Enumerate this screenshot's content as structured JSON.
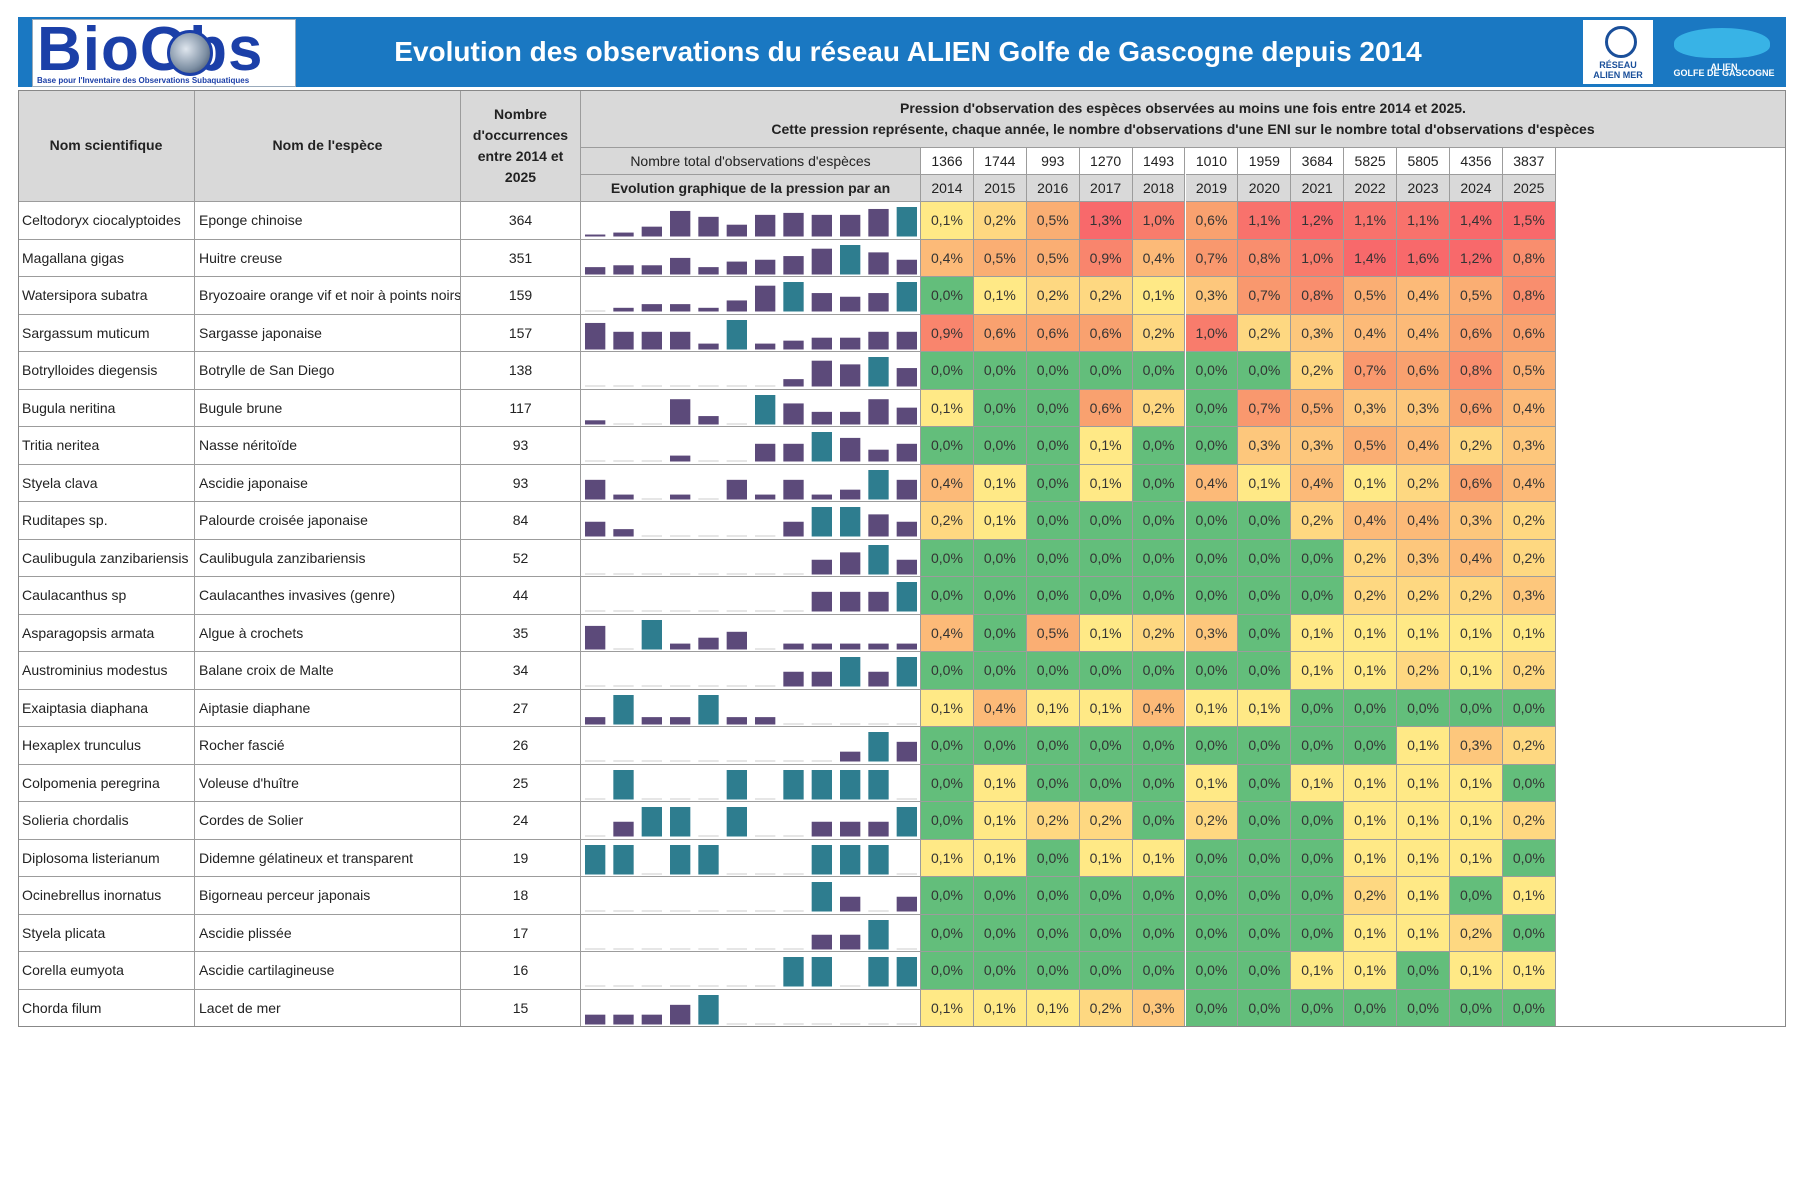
{
  "header": {
    "title": "Evolution des observations du réseau ALIEN Golfe de Gascogne depuis 2014",
    "logo_left_text": "BioObs",
    "logo_left_subtitle": "Base pour l'Inventaire des Observations Subaquatiques",
    "logo_center_text": "RÉSEAU ALIEN MER",
    "logo_right_text": "ALIEN",
    "logo_right_subtitle": "GOLFE DE GASCOGNE"
  },
  "colors": {
    "header_bg": "#1a78c2",
    "bar_purple": "#5c4a7a",
    "bar_teal": "#2e7d8f",
    "scale": [
      "#63be7b",
      "#a9cf7d",
      "#ffe986",
      "#fdc77c",
      "#f9a16f",
      "#f8696b"
    ]
  },
  "chart_data": {
    "type": "table",
    "title": "Evolution des observations du réseau ALIEN Golfe de Gascogne depuis 2014",
    "columns": {
      "scientific_name": "Nom scientifique",
      "species_name": "Nom de l'espèce",
      "occurrences": "Nombre d'occurrences entre 2014 et 2025",
      "pressure_title_line1": "Pression d'observation des espèces observées au moins une fois entre 2014 et 2025.",
      "pressure_title_line2": "Cette pression représente, chaque année, le nombre d'observations d'une ENI sur le nombre total d'observations d'espèces",
      "totals_label": "Nombre total d'observations d'espèces",
      "evolution_label": "Evolution graphique de la pression par an"
    },
    "years": [
      "2014",
      "2015",
      "2016",
      "2017",
      "2018",
      "2019",
      "2020",
      "2021",
      "2022",
      "2023",
      "2024",
      "2025"
    ],
    "totals": [
      "1366",
      "1744",
      "993",
      "1270",
      "1493",
      "1010",
      "1959",
      "3684",
      "5825",
      "5805",
      "4356",
      "3837"
    ],
    "rows": [
      {
        "sci": "Celtodoryx ciocalyptoides",
        "name": "Eponge chinoise",
        "n": "364",
        "p": [
          "0,1%",
          "0,2%",
          "0,5%",
          "1,3%",
          "1,0%",
          "0,6%",
          "1,1%",
          "1,2%",
          "1,1%",
          "1,1%",
          "1,4%",
          "1,5%"
        ],
        "v": [
          0.1,
          0.2,
          0.5,
          1.3,
          1.0,
          0.6,
          1.1,
          1.2,
          1.1,
          1.1,
          1.4,
          1.5
        ]
      },
      {
        "sci": "Magallana gigas",
        "name": "Huitre creuse",
        "n": "351",
        "p": [
          "0,4%",
          "0,5%",
          "0,5%",
          "0,9%",
          "0,4%",
          "0,7%",
          "0,8%",
          "1,0%",
          "1,4%",
          "1,6%",
          "1,2%",
          "0,8%"
        ],
        "v": [
          0.4,
          0.5,
          0.5,
          0.9,
          0.4,
          0.7,
          0.8,
          1.0,
          1.4,
          1.6,
          1.2,
          0.8
        ]
      },
      {
        "sci": "Watersipora subatra",
        "name": "Bryozoaire orange vif et noir à points noirs",
        "n": "159",
        "p": [
          "0,0%",
          "0,1%",
          "0,2%",
          "0,2%",
          "0,1%",
          "0,3%",
          "0,7%",
          "0,8%",
          "0,5%",
          "0,4%",
          "0,5%",
          "0,8%"
        ],
        "v": [
          0.0,
          0.1,
          0.2,
          0.2,
          0.1,
          0.3,
          0.7,
          0.8,
          0.5,
          0.4,
          0.5,
          0.8
        ]
      },
      {
        "sci": "Sargassum muticum",
        "name": "Sargasse japonaise",
        "n": "157",
        "p": [
          "0,9%",
          "0,6%",
          "0,6%",
          "0,6%",
          "0,2%",
          "1,0%",
          "0,2%",
          "0,3%",
          "0,4%",
          "0,4%",
          "0,6%",
          "0,6%"
        ],
        "v": [
          0.9,
          0.6,
          0.6,
          0.6,
          0.2,
          1.0,
          0.2,
          0.3,
          0.4,
          0.4,
          0.6,
          0.6
        ]
      },
      {
        "sci": "Botrylloides diegensis",
        "name": "Botrylle de San Diego",
        "n": "138",
        "p": [
          "0,0%",
          "0,0%",
          "0,0%",
          "0,0%",
          "0,0%",
          "0,0%",
          "0,0%",
          "0,2%",
          "0,7%",
          "0,6%",
          "0,8%",
          "0,5%"
        ],
        "v": [
          0.0,
          0.0,
          0.0,
          0.0,
          0.0,
          0.0,
          0.0,
          0.2,
          0.7,
          0.6,
          0.8,
          0.5
        ]
      },
      {
        "sci": "Bugula neritina",
        "name": "Bugule brune",
        "n": "117",
        "p": [
          "0,1%",
          "0,0%",
          "0,0%",
          "0,6%",
          "0,2%",
          "0,0%",
          "0,7%",
          "0,5%",
          "0,3%",
          "0,3%",
          "0,6%",
          "0,4%"
        ],
        "v": [
          0.1,
          0.0,
          0.0,
          0.6,
          0.2,
          0.0,
          0.7,
          0.5,
          0.3,
          0.3,
          0.6,
          0.4
        ]
      },
      {
        "sci": "Tritia neritea",
        "name": "Nasse néritoïde",
        "n": "93",
        "p": [
          "0,0%",
          "0,0%",
          "0,0%",
          "0,1%",
          "0,0%",
          "0,0%",
          "0,3%",
          "0,3%",
          "0,5%",
          "0,4%",
          "0,2%",
          "0,3%"
        ],
        "v": [
          0.0,
          0.0,
          0.0,
          0.1,
          0.0,
          0.0,
          0.3,
          0.3,
          0.5,
          0.4,
          0.2,
          0.3
        ]
      },
      {
        "sci": "Styela clava",
        "name": "Ascidie japonaise",
        "n": "93",
        "p": [
          "0,4%",
          "0,1%",
          "0,0%",
          "0,1%",
          "0,0%",
          "0,4%",
          "0,1%",
          "0,4%",
          "0,1%",
          "0,2%",
          "0,6%",
          "0,4%"
        ],
        "v": [
          0.4,
          0.1,
          0.0,
          0.1,
          0.0,
          0.4,
          0.1,
          0.4,
          0.1,
          0.2,
          0.6,
          0.4
        ]
      },
      {
        "sci": "Ruditapes sp.",
        "name": "Palourde croisée japonaise",
        "n": "84",
        "p": [
          "0,2%",
          "0,1%",
          "0,0%",
          "0,0%",
          "0,0%",
          "0,0%",
          "0,0%",
          "0,2%",
          "0,4%",
          "0,4%",
          "0,3%",
          "0,2%"
        ],
        "v": [
          0.2,
          0.1,
          0.0,
          0.0,
          0.0,
          0.0,
          0.0,
          0.2,
          0.4,
          0.4,
          0.3,
          0.2
        ]
      },
      {
        "sci": "Caulibugula zanzibariensis",
        "name": "Caulibugula zanzibariensis",
        "n": "52",
        "p": [
          "0,0%",
          "0,0%",
          "0,0%",
          "0,0%",
          "0,0%",
          "0,0%",
          "0,0%",
          "0,0%",
          "0,2%",
          "0,3%",
          "0,4%",
          "0,2%"
        ],
        "v": [
          0.0,
          0.0,
          0.0,
          0.0,
          0.0,
          0.0,
          0.0,
          0.0,
          0.2,
          0.3,
          0.4,
          0.2
        ]
      },
      {
        "sci": "Caulacanthus sp",
        "name": "Caulacanthes invasives (genre)",
        "n": "44",
        "p": [
          "0,0%",
          "0,0%",
          "0,0%",
          "0,0%",
          "0,0%",
          "0,0%",
          "0,0%",
          "0,0%",
          "0,2%",
          "0,2%",
          "0,2%",
          "0,3%"
        ],
        "v": [
          0.0,
          0.0,
          0.0,
          0.0,
          0.0,
          0.0,
          0.0,
          0.0,
          0.2,
          0.2,
          0.2,
          0.3
        ]
      },
      {
        "sci": "Asparagopsis armata",
        "name": "Algue à crochets",
        "n": "35",
        "p": [
          "0,4%",
          "0,0%",
          "0,5%",
          "0,1%",
          "0,2%",
          "0,3%",
          "0,0%",
          "0,1%",
          "0,1%",
          "0,1%",
          "0,1%",
          "0,1%"
        ],
        "v": [
          0.4,
          0.0,
          0.5,
          0.1,
          0.2,
          0.3,
          0.0,
          0.1,
          0.1,
          0.1,
          0.1,
          0.1
        ]
      },
      {
        "sci": "Austrominius modestus",
        "name": "Balane croix de Malte",
        "n": "34",
        "p": [
          "0,0%",
          "0,0%",
          "0,0%",
          "0,0%",
          "0,0%",
          "0,0%",
          "0,0%",
          "0,1%",
          "0,1%",
          "0,2%",
          "0,1%",
          "0,2%"
        ],
        "v": [
          0.0,
          0.0,
          0.0,
          0.0,
          0.0,
          0.0,
          0.0,
          0.1,
          0.1,
          0.2,
          0.1,
          0.2
        ]
      },
      {
        "sci": "Exaiptasia diaphana",
        "name": "Aiptasie diaphane",
        "n": "27",
        "p": [
          "0,1%",
          "0,4%",
          "0,1%",
          "0,1%",
          "0,4%",
          "0,1%",
          "0,1%",
          "0,0%",
          "0,0%",
          "0,0%",
          "0,0%",
          "0,0%"
        ],
        "v": [
          0.1,
          0.4,
          0.1,
          0.1,
          0.4,
          0.1,
          0.1,
          0.0,
          0.0,
          0.0,
          0.0,
          0.0
        ]
      },
      {
        "sci": "Hexaplex trunculus",
        "name": "Rocher fascié",
        "n": "26",
        "p": [
          "0,0%",
          "0,0%",
          "0,0%",
          "0,0%",
          "0,0%",
          "0,0%",
          "0,0%",
          "0,0%",
          "0,0%",
          "0,1%",
          "0,3%",
          "0,2%"
        ],
        "v": [
          0.0,
          0.0,
          0.0,
          0.0,
          0.0,
          0.0,
          0.0,
          0.0,
          0.0,
          0.1,
          0.3,
          0.2
        ]
      },
      {
        "sci": "Colpomenia peregrina",
        "name": "Voleuse d'huître",
        "n": "25",
        "p": [
          "0,0%",
          "0,1%",
          "0,0%",
          "0,0%",
          "0,0%",
          "0,1%",
          "0,0%",
          "0,1%",
          "0,1%",
          "0,1%",
          "0,1%",
          "0,0%"
        ],
        "v": [
          0.0,
          0.1,
          0.0,
          0.0,
          0.0,
          0.1,
          0.0,
          0.1,
          0.1,
          0.1,
          0.1,
          0.0
        ]
      },
      {
        "sci": "Solieria chordalis",
        "name": "Cordes de Solier",
        "n": "24",
        "p": [
          "0,0%",
          "0,1%",
          "0,2%",
          "0,2%",
          "0,0%",
          "0,2%",
          "0,0%",
          "0,0%",
          "0,1%",
          "0,1%",
          "0,1%",
          "0,2%"
        ],
        "v": [
          0.0,
          0.1,
          0.2,
          0.2,
          0.0,
          0.2,
          0.0,
          0.0,
          0.1,
          0.1,
          0.1,
          0.2
        ]
      },
      {
        "sci": "Diplosoma listerianum",
        "name": "Didemne gélatineux et transparent",
        "n": "19",
        "p": [
          "0,1%",
          "0,1%",
          "0,0%",
          "0,1%",
          "0,1%",
          "0,0%",
          "0,0%",
          "0,0%",
          "0,1%",
          "0,1%",
          "0,1%",
          "0,0%"
        ],
        "v": [
          0.1,
          0.1,
          0.0,
          0.1,
          0.1,
          0.0,
          0.0,
          0.0,
          0.1,
          0.1,
          0.1,
          0.0
        ]
      },
      {
        "sci": "Ocinebrellus inornatus",
        "name": "Bigorneau perceur japonais",
        "n": "18",
        "p": [
          "0,0%",
          "0,0%",
          "0,0%",
          "0,0%",
          "0,0%",
          "0,0%",
          "0,0%",
          "0,0%",
          "0,2%",
          "0,1%",
          "0,0%",
          "0,1%"
        ],
        "v": [
          0.0,
          0.0,
          0.0,
          0.0,
          0.0,
          0.0,
          0.0,
          0.0,
          0.2,
          0.1,
          0.0,
          0.1
        ]
      },
      {
        "sci": "Styela plicata",
        "name": "Ascidie plissée",
        "n": "17",
        "p": [
          "0,0%",
          "0,0%",
          "0,0%",
          "0,0%",
          "0,0%",
          "0,0%",
          "0,0%",
          "0,0%",
          "0,1%",
          "0,1%",
          "0,2%",
          "0,0%"
        ],
        "v": [
          0.0,
          0.0,
          0.0,
          0.0,
          0.0,
          0.0,
          0.0,
          0.0,
          0.1,
          0.1,
          0.2,
          0.0
        ]
      },
      {
        "sci": "Corella eumyota",
        "name": "Ascidie cartilagineuse",
        "n": "16",
        "p": [
          "0,0%",
          "0,0%",
          "0,0%",
          "0,0%",
          "0,0%",
          "0,0%",
          "0,0%",
          "0,1%",
          "0,1%",
          "0,0%",
          "0,1%",
          "0,1%"
        ],
        "v": [
          0.0,
          0.0,
          0.0,
          0.0,
          0.0,
          0.0,
          0.0,
          0.1,
          0.1,
          0.0,
          0.1,
          0.1
        ]
      },
      {
        "sci": "Chorda filum",
        "name": "Lacet de mer",
        "n": "15",
        "p": [
          "0,1%",
          "0,1%",
          "0,1%",
          "0,2%",
          "0,3%",
          "0,0%",
          "0,0%",
          "0,0%",
          "0,0%",
          "0,0%",
          "0,0%",
          "0,0%"
        ],
        "v": [
          0.1,
          0.1,
          0.1,
          0.2,
          0.3,
          0.0,
          0.0,
          0.0,
          0.0,
          0.0,
          0.0,
          0.0
        ]
      }
    ]
  }
}
